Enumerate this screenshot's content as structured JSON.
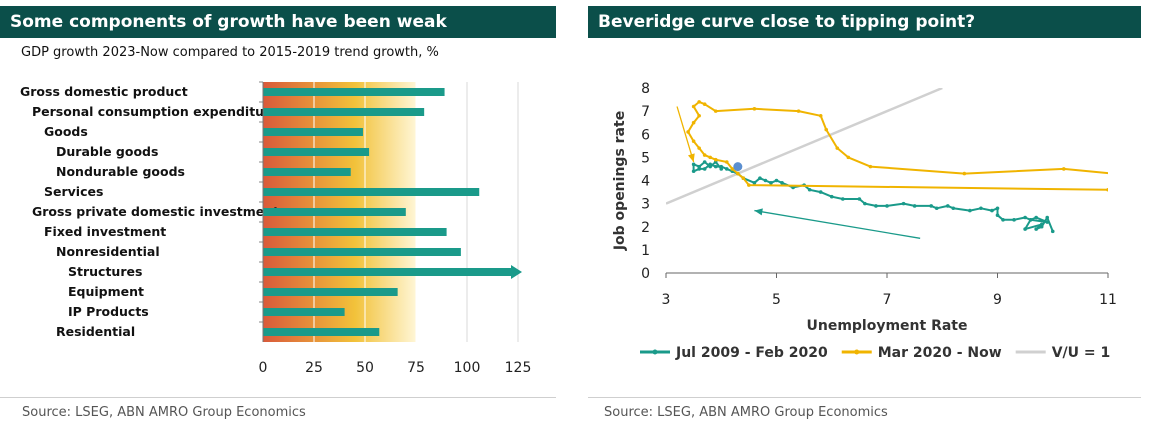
{
  "left": {
    "title": "Some components of growth have been weak",
    "subtitle": "GDP growth 2023-Now compared to 2015-2019 trend growth, %",
    "source": "Source:  LSEG, ABN AMRO Group Economics",
    "colors": {
      "bar": "#1a9a8a",
      "gradient_start": "#d9593a",
      "gradient_mid": "#f2c23a",
      "gradient_end": "#fff6d6"
    },
    "chart_data": {
      "type": "bar",
      "orientation": "horizontal",
      "categories": [
        "Gross domestic product",
        "Personal consumption expenditures",
        "Goods",
        "Durable goods",
        "Nondurable goods",
        "Services",
        "Gross private domestic investment",
        "Fixed investment",
        "Nonresidential",
        "Structures",
        "Equipment",
        "IP Products",
        "Residential"
      ],
      "indent": [
        0,
        1,
        2,
        3,
        3,
        2,
        1,
        2,
        3,
        4,
        4,
        4,
        3
      ],
      "values": [
        89,
        79,
        49,
        52,
        43,
        106,
        70,
        90,
        97,
        125,
        66,
        40,
        57
      ],
      "xlim": [
        0,
        125
      ],
      "xticks": [
        0,
        25,
        50,
        75,
        100,
        125
      ],
      "background_gradient_to": 75,
      "clipped_arrow": "Structures",
      "grid": true
    }
  },
  "right": {
    "title": "Beveridge curve close to tipping point?",
    "source": "Source:  LSEG, ABN AMRO Group Economics",
    "colors": {
      "series1": "#1a9a8a",
      "series2": "#f0b400",
      "series3": "#d0d0d0",
      "marker": "#5b8fd0"
    },
    "chart_data": {
      "type": "line",
      "xlabel": "Unemployment Rate",
      "ylabel": "Job openings rate",
      "xlim": [
        3,
        11
      ],
      "ylim": [
        0,
        8
      ],
      "xticks": [
        3,
        5,
        7,
        9,
        11
      ],
      "yticks": [
        0,
        1,
        2,
        3,
        4,
        5,
        6,
        7,
        8
      ],
      "legend_position": "bottom",
      "series": [
        {
          "name": "Jul 2009 - Feb 2020",
          "points": [
            [
              10.0,
              1.8
            ],
            [
              9.9,
              2.4
            ],
            [
              9.8,
              2.0
            ],
            [
              9.7,
              1.9
            ],
            [
              9.8,
              2.1
            ],
            [
              9.5,
              1.9
            ],
            [
              9.6,
              2.3
            ],
            [
              9.9,
              2.2
            ],
            [
              9.7,
              2.4
            ],
            [
              9.6,
              2.3
            ],
            [
              9.5,
              2.4
            ],
            [
              9.3,
              2.3
            ],
            [
              9.1,
              2.3
            ],
            [
              9.0,
              2.5
            ],
            [
              9.0,
              2.8
            ],
            [
              8.9,
              2.7
            ],
            [
              8.7,
              2.8
            ],
            [
              8.5,
              2.7
            ],
            [
              8.2,
              2.8
            ],
            [
              8.1,
              2.9
            ],
            [
              7.9,
              2.8
            ],
            [
              7.8,
              2.9
            ],
            [
              7.5,
              2.9
            ],
            [
              7.3,
              3.0
            ],
            [
              7.0,
              2.9
            ],
            [
              6.8,
              2.9
            ],
            [
              6.6,
              3.0
            ],
            [
              6.5,
              3.2
            ],
            [
              6.2,
              3.2
            ],
            [
              6.0,
              3.3
            ],
            [
              5.8,
              3.5
            ],
            [
              5.6,
              3.6
            ],
            [
              5.5,
              3.8
            ],
            [
              5.3,
              3.7
            ],
            [
              5.1,
              3.9
            ],
            [
              5.0,
              4.0
            ],
            [
              4.9,
              3.9
            ],
            [
              4.8,
              4.0
            ],
            [
              4.7,
              4.1
            ],
            [
              4.6,
              3.9
            ],
            [
              4.4,
              4.1
            ],
            [
              4.3,
              4.3
            ],
            [
              4.2,
              4.4
            ],
            [
              4.1,
              4.5
            ],
            [
              4.0,
              4.6
            ],
            [
              3.9,
              4.6
            ],
            [
              3.8,
              4.7
            ],
            [
              3.7,
              4.5
            ],
            [
              3.6,
              4.5
            ],
            [
              3.5,
              4.4
            ],
            [
              3.5,
              4.7
            ],
            [
              3.6,
              4.6
            ],
            [
              3.7,
              4.8
            ],
            [
              3.8,
              4.6
            ],
            [
              3.9,
              4.8
            ],
            [
              4.0,
              4.5
            ]
          ]
        },
        {
          "name": "Mar 2020 - Now",
          "points": [
            [
              11.1,
              4.3
            ],
            [
              10.2,
              4.5
            ],
            [
              8.4,
              4.3
            ],
            [
              6.7,
              4.6
            ],
            [
              6.3,
              5.0
            ],
            [
              6.1,
              5.4
            ],
            [
              5.9,
              6.2
            ],
            [
              5.8,
              6.8
            ],
            [
              5.4,
              7.0
            ],
            [
              4.6,
              7.1
            ],
            [
              3.9,
              7.0
            ],
            [
              3.7,
              7.3
            ],
            [
              3.6,
              7.4
            ],
            [
              3.5,
              7.2
            ],
            [
              3.6,
              6.8
            ],
            [
              3.5,
              6.5
            ],
            [
              3.4,
              6.1
            ],
            [
              3.5,
              5.7
            ],
            [
              3.6,
              5.4
            ],
            [
              3.7,
              5.1
            ],
            [
              3.8,
              5.0
            ],
            [
              3.9,
              4.9
            ],
            [
              4.1,
              4.8
            ],
            [
              4.2,
              4.5
            ],
            [
              4.3,
              4.3
            ],
            [
              4.4,
              4.1
            ],
            [
              4.5,
              3.8
            ],
            [
              11.0,
              3.6
            ]
          ]
        },
        {
          "name": "V/U = 1",
          "points": [
            [
              3.0,
              3.0
            ],
            [
              8.0,
              8.0
            ]
          ]
        }
      ],
      "highlight_point": [
        4.3,
        4.6
      ],
      "annotation_arrows": [
        {
          "from": [
            3.2,
            7.2
          ],
          "to": [
            3.5,
            4.8
          ],
          "color": "series2"
        },
        {
          "from": [
            7.6,
            1.5
          ],
          "to": [
            4.6,
            2.7
          ],
          "color": "series1"
        }
      ]
    }
  }
}
